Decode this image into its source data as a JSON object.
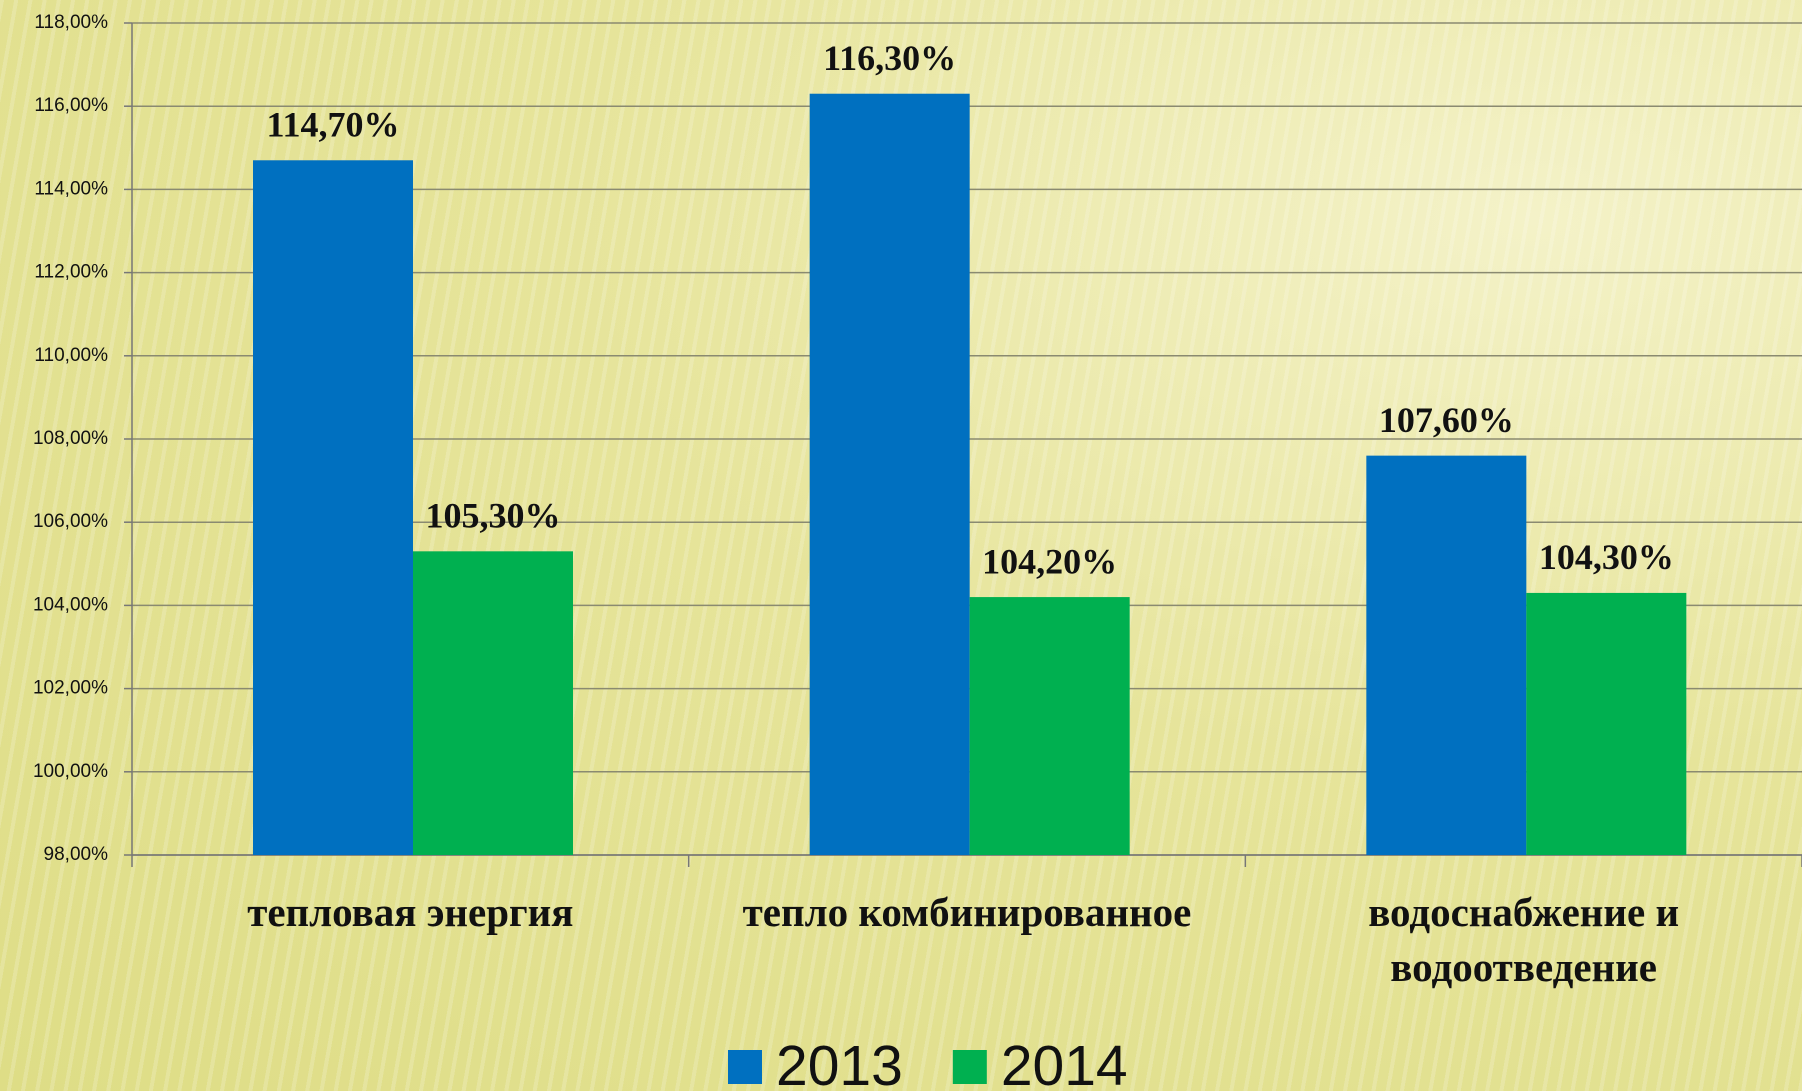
{
  "chart_data": {
    "type": "bar",
    "categories": [
      "тепловая энергия",
      "тепло комбинированное",
      "водоснабжение и водоотведение"
    ],
    "series": [
      {
        "name": "2013",
        "color": "#0070c0",
        "values": [
          114.7,
          116.3,
          107.6
        ],
        "value_labels": [
          "114,70%",
          "116,30%",
          "107,60%"
        ]
      },
      {
        "name": "2014",
        "color": "#00b050",
        "values": [
          105.3,
          104.2,
          104.3
        ],
        "value_labels": [
          "105,30%",
          "104,20%",
          "104,30%"
        ]
      }
    ],
    "ylim": [
      98,
      118
    ],
    "yticks": [
      {
        "value": 98,
        "label": "98,00%"
      },
      {
        "value": 100,
        "label": "100,00%"
      },
      {
        "value": 102,
        "label": "102,00%"
      },
      {
        "value": 104,
        "label": "104,00%"
      },
      {
        "value": 106,
        "label": "106,00%"
      },
      {
        "value": 108,
        "label": "108,00%"
      },
      {
        "value": 110,
        "label": "110,00%"
      },
      {
        "value": 112,
        "label": "112,00%"
      },
      {
        "value": 114,
        "label": "114,00%"
      },
      {
        "value": 116,
        "label": "116,00%"
      },
      {
        "value": 118,
        "label": "118,00%"
      }
    ],
    "grid": true,
    "legend": "bottom"
  }
}
